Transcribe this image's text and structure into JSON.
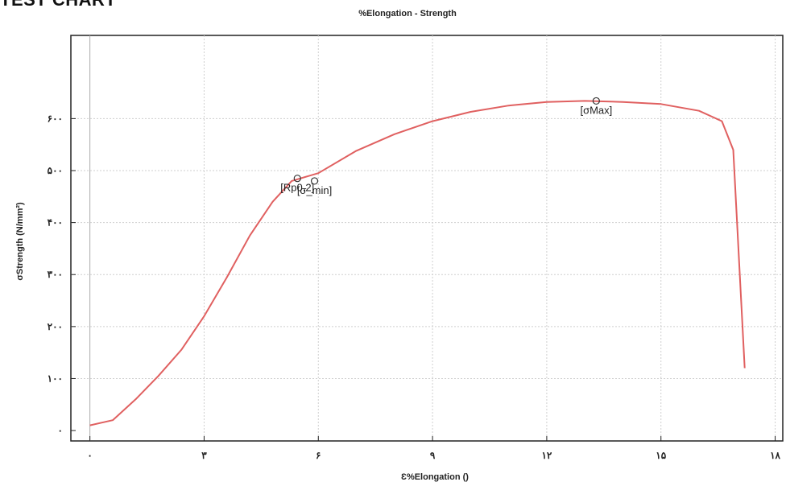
{
  "page": {
    "heading": "TEST CHART"
  },
  "chart_data": {
    "type": "line",
    "title": "%Elongation - Strength",
    "xlabel": "Ɛ%Elongation ()",
    "ylabel": "σStrength (N/mm²)",
    "xlim": [
      -0.5,
      18.2
    ],
    "ylim": [
      -20,
      760
    ],
    "grid": true,
    "x_ticks": [
      {
        "value": 0,
        "label": "۰"
      },
      {
        "value": 3,
        "label": "۳"
      },
      {
        "value": 6,
        "label": "۶"
      },
      {
        "value": 9,
        "label": "۹"
      },
      {
        "value": 12,
        "label": "۱۲"
      },
      {
        "value": 15,
        "label": "۱۵"
      },
      {
        "value": 18,
        "label": "۱۸"
      }
    ],
    "y_ticks": [
      {
        "value": 0,
        "label": "۰"
      },
      {
        "value": 100,
        "label": "۱۰۰"
      },
      {
        "value": 200,
        "label": "۲۰۰"
      },
      {
        "value": 300,
        "label": "۳۰۰"
      },
      {
        "value": 400,
        "label": "۴۰۰"
      },
      {
        "value": 500,
        "label": "۵۰۰"
      },
      {
        "value": 600,
        "label": "۶۰۰"
      }
    ],
    "series": [
      {
        "color": "#e06060",
        "x": [
          0,
          0.6,
          1.2,
          1.8,
          2.4,
          3.0,
          3.6,
          4.2,
          4.8,
          5.3,
          6.0,
          7.0,
          8.0,
          9.0,
          10.0,
          11.0,
          12.0,
          13.0,
          14.0,
          15.0,
          16.0,
          16.6,
          16.9,
          17.2
        ],
        "y": [
          10,
          20,
          60,
          105,
          155,
          220,
          295,
          375,
          440,
          480,
          495,
          538,
          570,
          595,
          613,
          625,
          632,
          634,
          632,
          628,
          615,
          595,
          540,
          120
        ]
      }
    ],
    "annotations": [
      {
        "label": "[σMax]",
        "x": 13.3,
        "y": 634
      },
      {
        "label": "[Rp0.2]",
        "x": 5.45,
        "y": 485
      },
      {
        "label": "[σ_min]",
        "x": 5.9,
        "y": 480
      }
    ]
  }
}
